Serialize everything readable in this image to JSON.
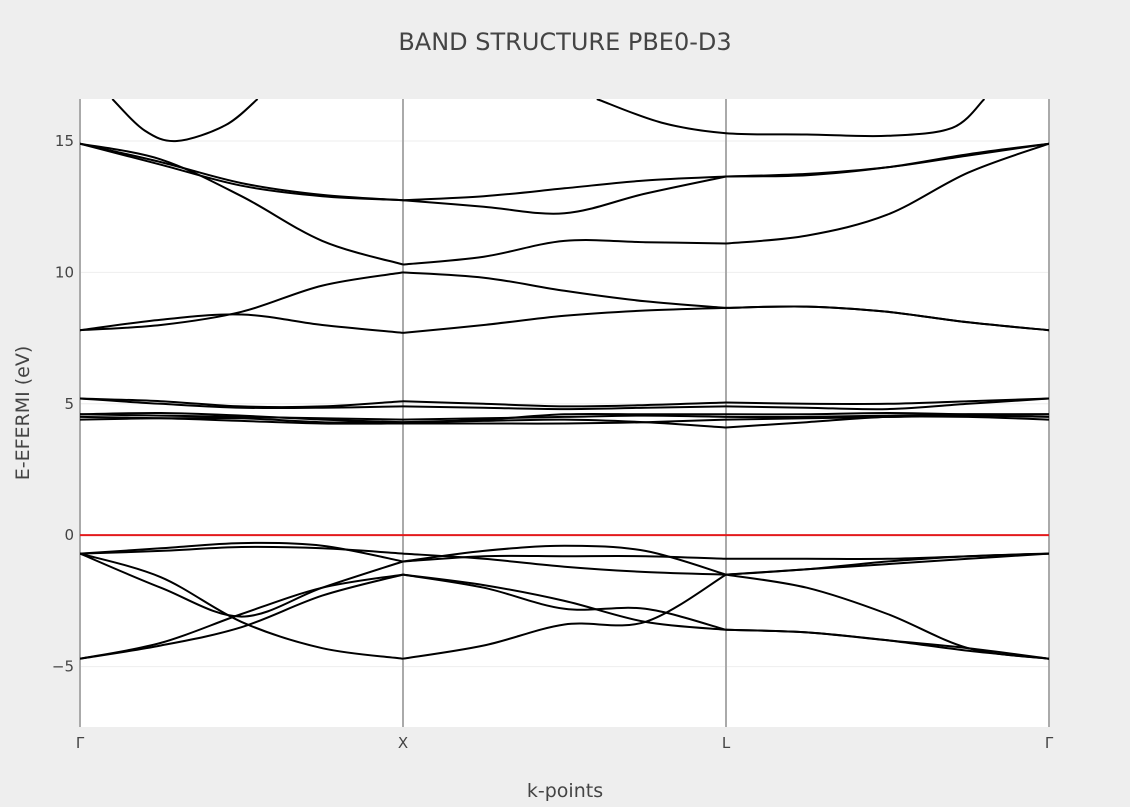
{
  "chart_data": {
    "type": "line",
    "title": "BAND STRUCTURE PBE0-D3",
    "xlabel": "k-points",
    "ylabel": "E-EFERMI (eV)",
    "xlim": [
      0,
      3
    ],
    "ylim": [
      -7.3,
      16.6
    ],
    "yticks": [
      -5,
      0,
      5,
      10,
      15
    ],
    "ytick_labels": [
      "−5",
      "0",
      "5",
      "10",
      "15"
    ],
    "xticks": [
      0,
      1,
      2,
      3
    ],
    "xtick_labels": [
      "Γ",
      "X",
      "L",
      "Γ"
    ],
    "grid": true,
    "legend": false,
    "colors": {
      "plot_bg": "#ffffff",
      "page_bg": "#eeeeee",
      "band": "#000000",
      "fermi": "#e31a1c",
      "kpath_line": "#aaaaaa",
      "grid": "#eeeeee"
    },
    "fermi_level": 0,
    "bands": [
      {
        "x": [
          0,
          0.25,
          0.5,
          0.75,
          1
        ],
        "y": [
          -4.7,
          -4.1,
          -3.0,
          -2.0,
          -1.5
        ]
      },
      {
        "x": [
          1,
          1.25,
          1.5,
          1.75,
          2
        ],
        "y": [
          -1.5,
          -1.9,
          -2.5,
          -3.3,
          -3.6
        ]
      },
      {
        "x": [
          2,
          2.25,
          2.5,
          2.75,
          3
        ],
        "y": [
          -3.6,
          -3.7,
          -4.0,
          -4.4,
          -4.7
        ]
      },
      {
        "x": [
          0,
          0.25,
          0.5,
          0.75,
          1
        ],
        "y": [
          -4.7,
          -4.2,
          -3.5,
          -2.3,
          -1.5
        ]
      },
      {
        "x": [
          1,
          1.25,
          1.5,
          1.75,
          2
        ],
        "y": [
          -1.5,
          -2.0,
          -2.8,
          -2.8,
          -3.6
        ]
      },
      {
        "x": [
          2,
          2.25,
          2.5,
          2.75,
          3
        ],
        "y": [
          -3.6,
          -3.7,
          -4.0,
          -4.3,
          -4.7
        ]
      },
      {
        "x": [
          0,
          0.25,
          0.5,
          0.75,
          1
        ],
        "y": [
          -0.7,
          -1.6,
          -3.3,
          -4.3,
          -4.7
        ]
      },
      {
        "x": [
          1,
          1.25,
          1.5,
          1.75,
          2
        ],
        "y": [
          -4.7,
          -4.2,
          -3.4,
          -3.3,
          -1.5
        ]
      },
      {
        "x": [
          2,
          2.25,
          2.5,
          2.75,
          3
        ],
        "y": [
          -1.5,
          -2.0,
          -3.0,
          -4.3,
          -4.7
        ]
      },
      {
        "x": [
          0,
          0.25,
          0.5,
          0.75,
          1
        ],
        "y": [
          -0.7,
          -2.0,
          -3.1,
          -2.0,
          -1.0
        ]
      },
      {
        "x": [
          1,
          1.25,
          1.5,
          1.75,
          2
        ],
        "y": [
          -1.0,
          -0.6,
          -0.4,
          -0.6,
          -1.5
        ]
      },
      {
        "x": [
          2,
          2.25,
          2.5,
          2.75,
          3
        ],
        "y": [
          -1.5,
          -1.3,
          -1.1,
          -0.9,
          -0.7
        ]
      },
      {
        "x": [
          0,
          0.25,
          0.5,
          0.75,
          1
        ],
        "y": [
          -0.7,
          -0.5,
          -0.3,
          -0.4,
          -1.0
        ]
      },
      {
        "x": [
          1,
          1.25,
          1.5,
          1.75,
          2
        ],
        "y": [
          -1.0,
          -0.8,
          -0.8,
          -0.8,
          -0.9
        ]
      },
      {
        "x": [
          2,
          2.25,
          2.5,
          2.75,
          3
        ],
        "y": [
          -0.9,
          -0.9,
          -0.9,
          -0.8,
          -0.7
        ]
      },
      {
        "x": [
          0,
          0.25,
          0.5,
          0.75,
          1
        ],
        "y": [
          -0.7,
          -0.6,
          -0.45,
          -0.5,
          -0.7
        ]
      },
      {
        "x": [
          1,
          1.25,
          1.5,
          1.75,
          2
        ],
        "y": [
          -0.7,
          -0.9,
          -1.2,
          -1.4,
          -1.5
        ]
      },
      {
        "x": [
          2,
          2.25,
          2.5,
          2.75,
          3
        ],
        "y": [
          -1.5,
          -1.3,
          -1.0,
          -0.8,
          -0.7
        ]
      },
      {
        "x": [
          0,
          0.25,
          0.5,
          0.75,
          1
        ],
        "y": [
          4.4,
          4.45,
          4.45,
          4.3,
          4.3
        ]
      },
      {
        "x": [
          1,
          1.25,
          1.5,
          1.75,
          2
        ],
        "y": [
          4.3,
          4.35,
          4.4,
          4.3,
          4.1
        ]
      },
      {
        "x": [
          2,
          2.25,
          2.5,
          2.75,
          3
        ],
        "y": [
          4.1,
          4.3,
          4.5,
          4.5,
          4.4
        ]
      },
      {
        "x": [
          0,
          0.25,
          0.5,
          0.75,
          1
        ],
        "y": [
          4.5,
          4.45,
          4.35,
          4.25,
          4.25
        ]
      },
      {
        "x": [
          1,
          1.25,
          1.5,
          1.75,
          2
        ],
        "y": [
          4.25,
          4.25,
          4.25,
          4.3,
          4.4
        ]
      },
      {
        "x": [
          2,
          2.25,
          2.5,
          2.75,
          3
        ],
        "y": [
          4.4,
          4.45,
          4.5,
          4.55,
          4.5
        ]
      },
      {
        "x": [
          0,
          0.25,
          0.5,
          0.75,
          1
        ],
        "y": [
          4.6,
          4.55,
          4.5,
          4.45,
          4.4
        ]
      },
      {
        "x": [
          1,
          1.25,
          1.5,
          1.75,
          2
        ],
        "y": [
          4.4,
          4.45,
          4.5,
          4.55,
          4.5
        ]
      },
      {
        "x": [
          2,
          2.25,
          2.5,
          2.75,
          3
        ],
        "y": [
          4.5,
          4.5,
          4.55,
          4.6,
          4.6
        ]
      },
      {
        "x": [
          0,
          0.25,
          0.5,
          0.75,
          1
        ],
        "y": [
          4.6,
          4.65,
          4.55,
          4.4,
          4.3
        ]
      },
      {
        "x": [
          1,
          1.25,
          1.5,
          1.75,
          2
        ],
        "y": [
          4.3,
          4.4,
          4.6,
          4.6,
          4.6
        ]
      },
      {
        "x": [
          2,
          2.25,
          2.5,
          2.75,
          3
        ],
        "y": [
          4.6,
          4.6,
          4.65,
          4.6,
          4.6
        ]
      },
      {
        "x": [
          0,
          0.25,
          0.5,
          0.75,
          1
        ],
        "y": [
          5.2,
          5.0,
          4.85,
          4.85,
          4.9
        ]
      },
      {
        "x": [
          1,
          1.25,
          1.5,
          1.75,
          2
        ],
        "y": [
          4.9,
          4.85,
          4.8,
          4.85,
          4.9
        ]
      },
      {
        "x": [
          2,
          2.25,
          2.5,
          2.75,
          3
        ],
        "y": [
          4.9,
          4.85,
          4.8,
          5.0,
          5.2
        ]
      },
      {
        "x": [
          0,
          0.25,
          0.5,
          0.75,
          1
        ],
        "y": [
          5.2,
          5.1,
          4.9,
          4.9,
          5.1
        ]
      },
      {
        "x": [
          1,
          1.25,
          1.5,
          1.75,
          2
        ],
        "y": [
          5.1,
          5.0,
          4.9,
          4.95,
          5.05
        ]
      },
      {
        "x": [
          2,
          2.25,
          2.5,
          2.75,
          3
        ],
        "y": [
          5.05,
          5.0,
          5.0,
          5.1,
          5.2
        ]
      },
      {
        "x": [
          0,
          0.25,
          0.5,
          0.75,
          1
        ],
        "y": [
          7.8,
          8.2,
          8.4,
          8.0,
          7.7
        ]
      },
      {
        "x": [
          1,
          1.25,
          1.5,
          1.75,
          2
        ],
        "y": [
          7.7,
          8.0,
          8.35,
          8.55,
          8.65
        ]
      },
      {
        "x": [
          2,
          2.25,
          2.5,
          2.75,
          3
        ],
        "y": [
          8.65,
          8.7,
          8.5,
          8.1,
          7.8
        ]
      },
      {
        "x": [
          0,
          0.25,
          0.5,
          0.75,
          1
        ],
        "y": [
          7.8,
          8.0,
          8.5,
          9.5,
          10.0
        ]
      },
      {
        "x": [
          1,
          1.25,
          1.5,
          1.75,
          2
        ],
        "y": [
          10.0,
          9.8,
          9.3,
          8.9,
          8.65
        ]
      },
      {
        "x": [
          2,
          2.25,
          2.5,
          2.75,
          3
        ],
        "y": [
          8.65,
          8.7,
          8.5,
          8.1,
          7.8
        ]
      },
      {
        "x": [
          0,
          0.25,
          0.5,
          0.75,
          1
        ],
        "y": [
          14.9,
          14.3,
          12.9,
          11.2,
          10.3
        ]
      },
      {
        "x": [
          1,
          1.25,
          1.5,
          1.75,
          2
        ],
        "y": [
          10.3,
          10.6,
          11.2,
          11.15,
          11.1
        ]
      },
      {
        "x": [
          2,
          2.25,
          2.5,
          2.75,
          3
        ],
        "y": [
          11.1,
          11.4,
          12.2,
          13.8,
          14.9
        ]
      },
      {
        "x": [
          0,
          0.25,
          0.5,
          0.75,
          1
        ],
        "y": [
          14.9,
          14.1,
          13.3,
          12.9,
          12.75
        ]
      },
      {
        "x": [
          1,
          1.25,
          1.5,
          1.75,
          2
        ],
        "y": [
          12.75,
          12.5,
          12.25,
          13.0,
          13.65
        ]
      },
      {
        "x": [
          2,
          2.25,
          2.5,
          2.75,
          3
        ],
        "y": [
          13.65,
          13.7,
          14.0,
          14.5,
          14.9
        ]
      },
      {
        "x": [
          0,
          0.25,
          0.5,
          0.75,
          1
        ],
        "y": [
          14.9,
          14.2,
          13.4,
          12.95,
          12.75
        ]
      },
      {
        "x": [
          1,
          1.25,
          1.5,
          1.75,
          2
        ],
        "y": [
          12.75,
          12.9,
          13.2,
          13.5,
          13.65
        ]
      },
      {
        "x": [
          2,
          2.25,
          2.5,
          2.75,
          3
        ],
        "y": [
          13.65,
          13.75,
          14.0,
          14.45,
          14.9
        ]
      },
      {
        "x": [
          0.1,
          0.2,
          0.3,
          0.45,
          0.55
        ],
        "y": [
          16.6,
          15.4,
          15.0,
          15.6,
          16.6
        ]
      },
      {
        "x": [
          1.6,
          1.8,
          2,
          2.25,
          2.5,
          2.7,
          2.8
        ],
        "y": [
          16.6,
          15.7,
          15.3,
          15.25,
          15.2,
          15.5,
          16.6
        ]
      }
    ]
  }
}
